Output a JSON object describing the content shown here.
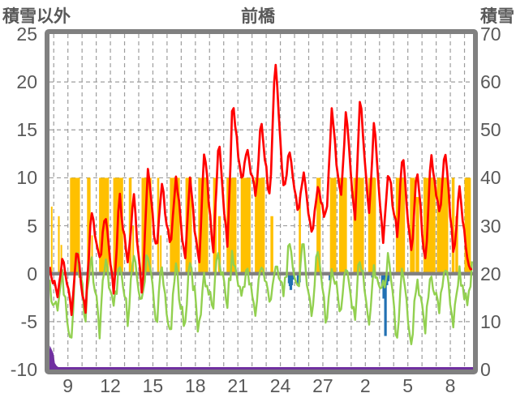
{
  "header": {
    "left_axis_title": "積雪以外",
    "title": "前橋",
    "right_axis_title": "積雪"
  },
  "chart_data": {
    "type": "line",
    "title": "前橋",
    "left_axis": {
      "label": "積雪以外",
      "ticks": [
        25,
        20,
        15,
        10,
        5,
        0,
        -5,
        -10
      ],
      "range": [
        -10,
        25
      ]
    },
    "right_axis": {
      "label": "積雪",
      "ticks": [
        70,
        60,
        50,
        40,
        30,
        20,
        10,
        0
      ],
      "range": [
        0,
        70
      ],
      "unit_note": "right 0 aligns with left -10"
    },
    "x_axis": {
      "tick_labels": [
        "9",
        "12",
        "15",
        "18",
        "21",
        "24",
        "27",
        "2",
        "5",
        "8"
      ],
      "tick_days": [
        9,
        12,
        15,
        18,
        21,
        24,
        27,
        30,
        33,
        36
      ],
      "domain_days": [
        7.7,
        37.6
      ],
      "grid_every_day": true
    },
    "grid": {
      "h_values": [
        20,
        15,
        10,
        5,
        -5
      ],
      "zero_line_value": 0,
      "zero_line_color": "#808080"
    },
    "days_of_month": [
      8,
      9,
      10,
      11,
      12,
      13,
      14,
      15,
      16,
      17,
      18,
      19,
      20,
      21,
      22,
      23,
      24,
      25,
      26,
      27,
      28,
      1,
      2,
      3,
      4,
      5,
      6,
      7,
      8,
      9
    ],
    "series": {
      "red_line": {
        "color": "#FF0000",
        "daily_max": [
          2.0,
          2.5,
          6.9,
          7.0,
          8.3,
          8.5,
          11.3,
          9.5,
          10.4,
          10.0,
          13.5,
          14.3,
          18.1,
          13.0,
          16.0,
          23.0,
          12.9,
          10.6,
          9.0,
          17.6,
          17.4,
          18.7,
          16.1,
          11.0,
          12.9,
          11.4,
          12.5,
          13.1,
          9.0,
          11.9
        ],
        "daily_min": [
          -2.0,
          -4.0,
          -4.0,
          1.0,
          -2.5,
          1.0,
          -2.5,
          2.0,
          2.5,
          1.5,
          0.5,
          2.0,
          3.0,
          9.7,
          8.0,
          7.5,
          8.2,
          6.4,
          3.9,
          5.5,
          7.2,
          5.5,
          6.5,
          3.0,
          4.0,
          1.5,
          0.6,
          5.8,
          1.5,
          0.8
        ]
      },
      "green_line": {
        "color": "#92D050",
        "daily_max": [
          -0.5,
          2.1,
          1.9,
          1.5,
          0.5,
          1.5,
          2.9,
          0.5,
          1.0,
          2.0,
          0.0,
          2.3,
          1.8,
          0.5,
          1.3,
          0.5,
          2.5,
          2.8,
          3.2,
          1.0,
          0.5,
          2.0,
          0.0,
          1.5,
          0.5,
          -1.0,
          0.0,
          1.0,
          0.5,
          1.5
        ],
        "daily_min": [
          -4.0,
          -7.6,
          -4.5,
          -6.2,
          -4.0,
          -4.5,
          -3.5,
          -5.5,
          -7.2,
          -6.5,
          -6.5,
          -4.0,
          -3.6,
          -2.5,
          -4.5,
          -3.0,
          -2.0,
          -1.5,
          -5.0,
          -5.5,
          -4.0,
          -5.0,
          -5.5,
          -2.0,
          -7.5,
          -8.5,
          -6.0,
          -4.0,
          -5.5,
          -4.0
        ]
      },
      "orange_bars": {
        "color": "#FFC000",
        "segments": [
          [
            7.8,
            7.86,
            7
          ],
          [
            8.3,
            8.42,
            6
          ],
          [
            8.48,
            8.54,
            3
          ],
          [
            9.15,
            9.85,
            10
          ],
          [
            10.35,
            10.6,
            10
          ],
          [
            10.65,
            10.75,
            4
          ],
          [
            11.2,
            11.9,
            10
          ],
          [
            12.2,
            12.9,
            10
          ],
          [
            13.3,
            13.5,
            10
          ],
          [
            13.55,
            13.65,
            5
          ],
          [
            14.2,
            14.9,
            10
          ],
          [
            15.3,
            15.45,
            10
          ],
          [
            15.5,
            15.6,
            4
          ],
          [
            16.2,
            16.9,
            10
          ],
          [
            17.3,
            17.75,
            10
          ],
          [
            18.2,
            18.9,
            10
          ],
          [
            19.25,
            19.5,
            10
          ],
          [
            19.6,
            19.8,
            6
          ],
          [
            20.2,
            20.9,
            10
          ],
          [
            21.2,
            21.9,
            10
          ],
          [
            22.2,
            22.9,
            10
          ],
          [
            23.3,
            23.5,
            6
          ],
          [
            25.3,
            25.45,
            8
          ],
          [
            26.55,
            26.85,
            10
          ],
          [
            27.5,
            27.95,
            10
          ],
          [
            28.15,
            28.7,
            10
          ],
          [
            29.15,
            29.9,
            10
          ],
          [
            30.2,
            30.75,
            10
          ],
          [
            32.15,
            32.8,
            10
          ],
          [
            33.15,
            33.5,
            10
          ],
          [
            33.55,
            33.8,
            8
          ],
          [
            34.1,
            34.95,
            10
          ],
          [
            35.05,
            35.85,
            10
          ],
          [
            36.1,
            36.3,
            10
          ],
          [
            36.35,
            36.55,
            6
          ],
          [
            37.0,
            37.45,
            10
          ]
        ]
      },
      "blue_bars": {
        "color": "#2271B3",
        "points": [
          [
            24.62,
            1.0
          ],
          [
            24.68,
            1.3
          ],
          [
            24.74,
            1.7
          ],
          [
            24.8,
            1.2
          ],
          [
            24.9,
            0.6
          ],
          [
            25.25,
            1.2
          ],
          [
            25.35,
            0.9
          ],
          [
            27.5,
            0.7
          ],
          [
            30.5,
            0.4
          ],
          [
            31.2,
            1.5
          ],
          [
            31.3,
            2.6
          ],
          [
            31.42,
            6.5
          ],
          [
            31.52,
            1.2
          ],
          [
            31.62,
            0.8
          ]
        ]
      },
      "purple_line": {
        "color": "#7030A0",
        "points": [
          [
            7.7,
            2.0
          ],
          [
            7.78,
            3.8
          ],
          [
            7.9,
            3.0
          ],
          [
            8.0,
            1.0
          ],
          [
            8.15,
            0.3
          ],
          [
            8.3,
            0
          ],
          [
            37.6,
            0
          ]
        ]
      }
    }
  },
  "y_left_ticks": [
    "25",
    "20",
    "15",
    "10",
    "5",
    "0",
    "-5",
    "-10"
  ],
  "y_right_ticks": [
    "70",
    "60",
    "50",
    "40",
    "30",
    "20",
    "10",
    "0"
  ]
}
